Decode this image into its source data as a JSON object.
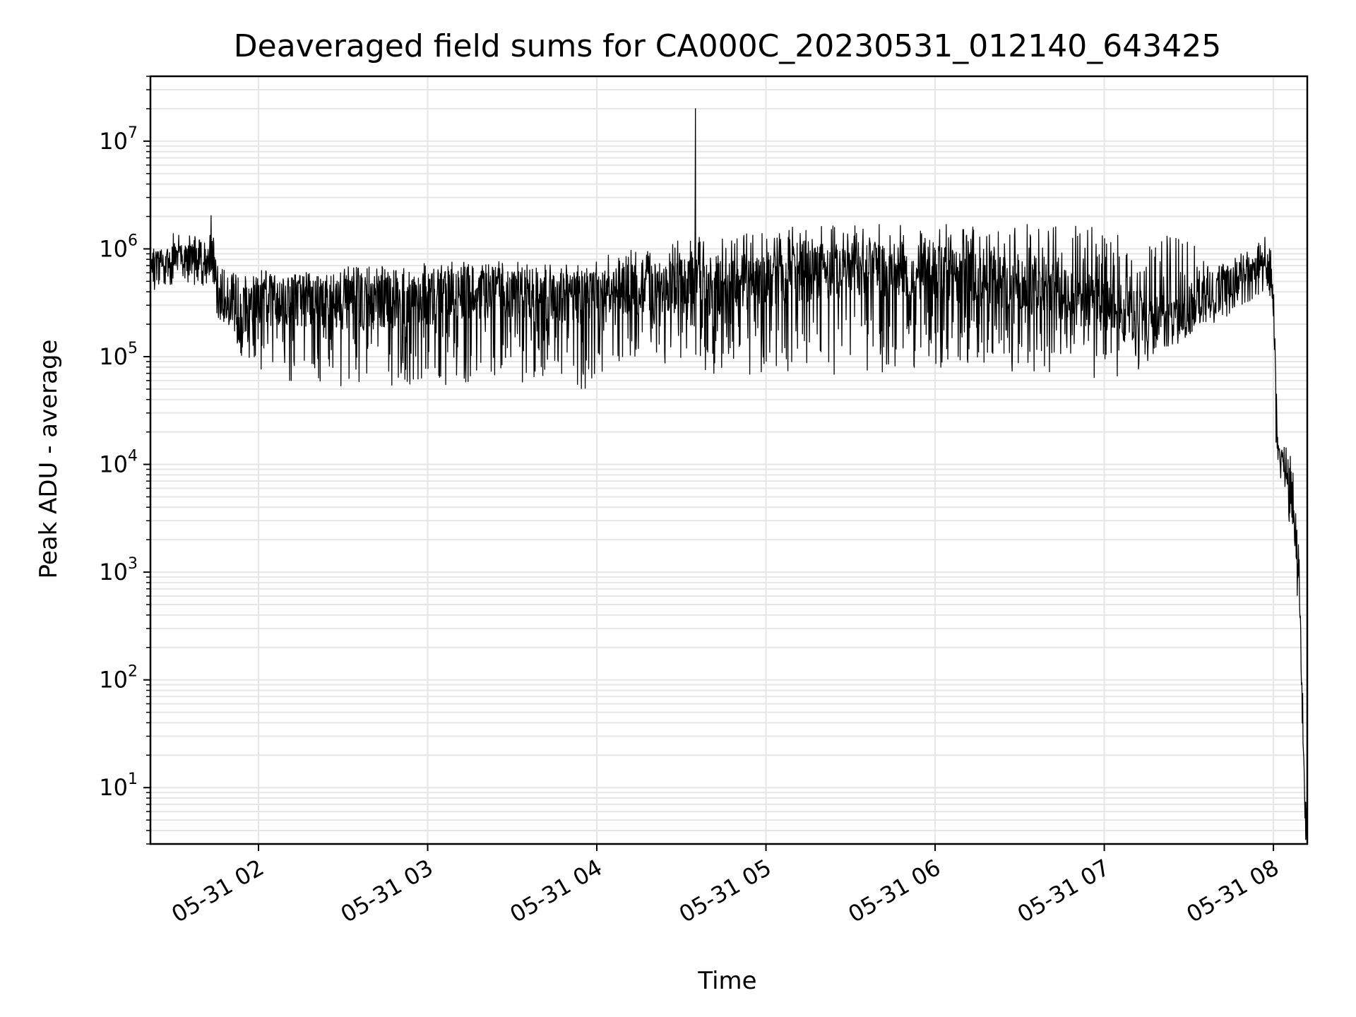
{
  "chart_data": {
    "type": "line",
    "title": "Deaveraged field sums for CA000C_20230531_012140_643425",
    "xlabel": "Time",
    "ylabel": "Peak ADU - average",
    "yscale": "log",
    "xlim": [
      "2023-05-31T01:21:40",
      "2023-05-31T08:12:00"
    ],
    "ylim": [
      3,
      40000000.0
    ],
    "grid": true,
    "x_ticks": [
      "05-31 02",
      "05-31 03",
      "05-31 04",
      "05-31 05",
      "05-31 06",
      "05-31 07",
      "05-31 08"
    ],
    "y_ticks": [
      {
        "base": "10",
        "exp": "1",
        "value": 10
      },
      {
        "base": "10",
        "exp": "2",
        "value": 100
      },
      {
        "base": "10",
        "exp": "3",
        "value": 1000
      },
      {
        "base": "10",
        "exp": "4",
        "value": 10000
      },
      {
        "base": "10",
        "exp": "5",
        "value": 100000
      },
      {
        "base": "10",
        "exp": "6",
        "value": 1000000
      },
      {
        "base": "10",
        "exp": "7",
        "value": 10000000
      }
    ],
    "line_color": "#000000",
    "grid_color": "#e6e6e6",
    "series": [
      {
        "x": [
          "01:22",
          "01:25",
          "01:30",
          "01:35",
          "01:40",
          "01:44",
          "01:45",
          "01:50",
          "01:55",
          "02:00",
          "02:05",
          "02:10",
          "02:20",
          "02:30",
          "02:40",
          "02:50",
          "03:00",
          "03:10",
          "03:20",
          "03:30",
          "03:40",
          "03:50",
          "03:55",
          "04:00",
          "04:10",
          "04:20",
          "04:30",
          "04:35",
          "04:36",
          "04:40",
          "04:50",
          "05:00",
          "05:10",
          "05:20",
          "05:30",
          "05:40",
          "05:50",
          "06:00",
          "06:10",
          "06:20",
          "06:30",
          "06:40",
          "06:50",
          "07:00",
          "07:10",
          "07:20",
          "07:30",
          "07:40",
          "07:45",
          "07:50",
          "07:55",
          "07:57",
          "07:59",
          "08:00",
          "08:01",
          "08:02",
          "08:03",
          "08:05",
          "08:07",
          "08:09",
          "08:10",
          "08:11",
          "08:12"
        ],
        "y": [
          700000,
          750000,
          800000,
          850000,
          800000,
          750000,
          400000,
          300000,
          250000,
          300000,
          350000,
          350000,
          330000,
          320000,
          310000,
          330000,
          350000,
          380000,
          390000,
          380000,
          360000,
          350000,
          350000,
          360000,
          400000,
          420000,
          450000,
          470000,
          480000,
          420000,
          450000,
          500000,
          550000,
          600000,
          650000,
          650000,
          620000,
          600000,
          560000,
          500000,
          450000,
          400000,
          350000,
          300000,
          250000,
          230000,
          260000,
          380000,
          430000,
          550000,
          650000,
          750000,
          600000,
          300000,
          30000,
          12000,
          12000,
          10000,
          5000,
          1000,
          100,
          10,
          3
        ],
        "spread_min": [
          600000,
          650000,
          700000,
          700000,
          600000,
          550000,
          250000,
          150000,
          90000,
          60000,
          55000,
          50000,
          50000,
          50000,
          50000,
          50000,
          55000,
          55000,
          50000,
          55000,
          60000,
          60000,
          40000,
          70000,
          80000,
          90000,
          80000,
          70000,
          80000,
          70000,
          70000,
          65000,
          70000,
          65000,
          65000,
          70000,
          70000,
          75000,
          75000,
          70000,
          70000,
          65000,
          65000,
          60000,
          70000,
          100000,
          150000,
          300000,
          350000,
          500000,
          600000,
          700000,
          500000,
          250000,
          10000,
          9000,
          9000,
          4000,
          1000,
          500,
          50,
          5,
          3
        ],
        "spread_max": [
          950000,
          950000,
          1000000,
          1100000,
          1300000,
          2300000,
          700000,
          650000,
          650000,
          650000,
          650000,
          650000,
          650000,
          680000,
          700000,
          720000,
          750000,
          800000,
          780000,
          760000,
          750000,
          760000,
          750000,
          800000,
          1000000,
          1200000,
          1300000,
          1300000,
          1400000,
          1300000,
          1400000,
          1500000,
          1600000,
          1700000,
          1800000,
          1800000,
          1700000,
          1700000,
          1700000,
          1700000,
          1700000,
          1700000,
          1700000,
          1600000,
          1500000,
          1400000,
          1200000,
          750000,
          700000,
          800000,
          1000000,
          900000,
          850000,
          400000,
          15000,
          15000,
          12000,
          6000,
          2000,
          800,
          120,
          12,
          3
        ]
      }
    ],
    "spike": {
      "x": "04:35",
      "y": 20000000
    }
  }
}
